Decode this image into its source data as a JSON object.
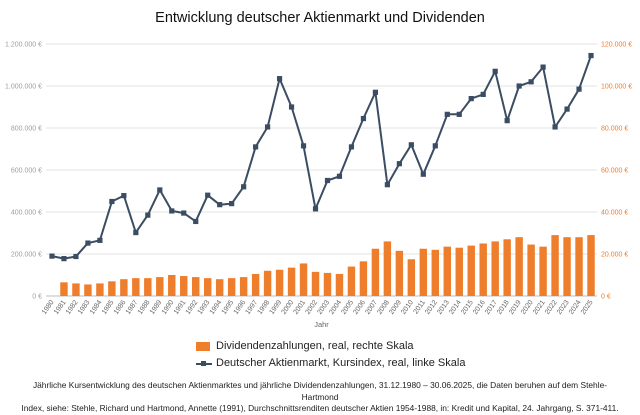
{
  "chart_data": {
    "type": "bar+line",
    "title": "Entwicklung deutscher Aktienmarkt und Dividenden",
    "xlabel": "Jahr",
    "categories": [
      "1980",
      "1981",
      "1982",
      "1983",
      "1984",
      "1985",
      "1986",
      "1987",
      "1988",
      "1989",
      "1990",
      "1991",
      "1992",
      "1993",
      "1994",
      "1995",
      "1996",
      "1997",
      "1998",
      "1999",
      "2000",
      "2001",
      "2002",
      "2003",
      "2004",
      "2005",
      "2006",
      "2007",
      "2008",
      "2009",
      "2010",
      "2011",
      "2012",
      "2013",
      "2014",
      "2015",
      "2016",
      "2017",
      "2018",
      "2019",
      "2020",
      "2021",
      "2022",
      "2023",
      "2024",
      "2025"
    ],
    "left_axis": {
      "ylim": [
        0,
        1200000
      ],
      "ticks": [
        "0 €",
        "200.000 €",
        "400.000 €",
        "600.000 €",
        "800.000 €",
        "1.000.000 €",
        "1.200.000 €"
      ]
    },
    "right_axis": {
      "ylim": [
        0,
        120000
      ],
      "ticks": [
        "0 €",
        "20.000 €",
        "40.000 €",
        "60.000 €",
        "80.000 €",
        "100.000 €",
        "120.000 €"
      ]
    },
    "grid": true,
    "legend_position": "bottom",
    "series": [
      {
        "name": "Dividendenzahlungen, real, rechte Skala",
        "type": "bar",
        "axis": "right",
        "color": "#ee7d2c",
        "values": [
          null,
          6500,
          6000,
          5500,
          6000,
          7000,
          8000,
          8500,
          8500,
          9000,
          10000,
          9500,
          9000,
          8500,
          8000,
          8500,
          9000,
          10500,
          12000,
          12500,
          13500,
          15500,
          11500,
          11000,
          10500,
          14000,
          16500,
          22500,
          26000,
          21500,
          17500,
          22500,
          22000,
          23500,
          23000,
          24000,
          25000,
          26000,
          27000,
          28000,
          24500,
          23500,
          29000,
          28000,
          28000,
          29000
        ]
      },
      {
        "name": "Deutscher Aktienmarkt, Kursindex, real, linke Skala",
        "type": "line",
        "axis": "left",
        "color": "#3b4d63",
        "values": [
          190000,
          178000,
          188000,
          252000,
          265000,
          450000,
          478000,
          302000,
          385000,
          505000,
          405000,
          395000,
          355000,
          480000,
          435000,
          440000,
          520000,
          710000,
          805000,
          1035000,
          900000,
          715000,
          415000,
          550000,
          570000,
          710000,
          845000,
          970000,
          530000,
          630000,
          720000,
          580000,
          715000,
          865000,
          865000,
          940000,
          960000,
          1070000,
          835000,
          1000000,
          1020000,
          1090000,
          805000,
          890000,
          985000,
          1145000
        ]
      }
    ]
  },
  "footnote": {
    "line1": "Jährliche Kursentwicklung des deutschen Aktienmarktes und jährliche Dividendenzahlungen, 31.12.1980 – 30.06.2025, die Daten beruhen auf dem Stehle-Hartmond",
    "line2": "Index, siehe: Stehle, Richard und Hartmond, Annette (1991), Durchschnittsrenditen deutscher Aktien 1954-1988, in: Kredit und Kapital, 24. Jahrgang, S. 371-411."
  }
}
